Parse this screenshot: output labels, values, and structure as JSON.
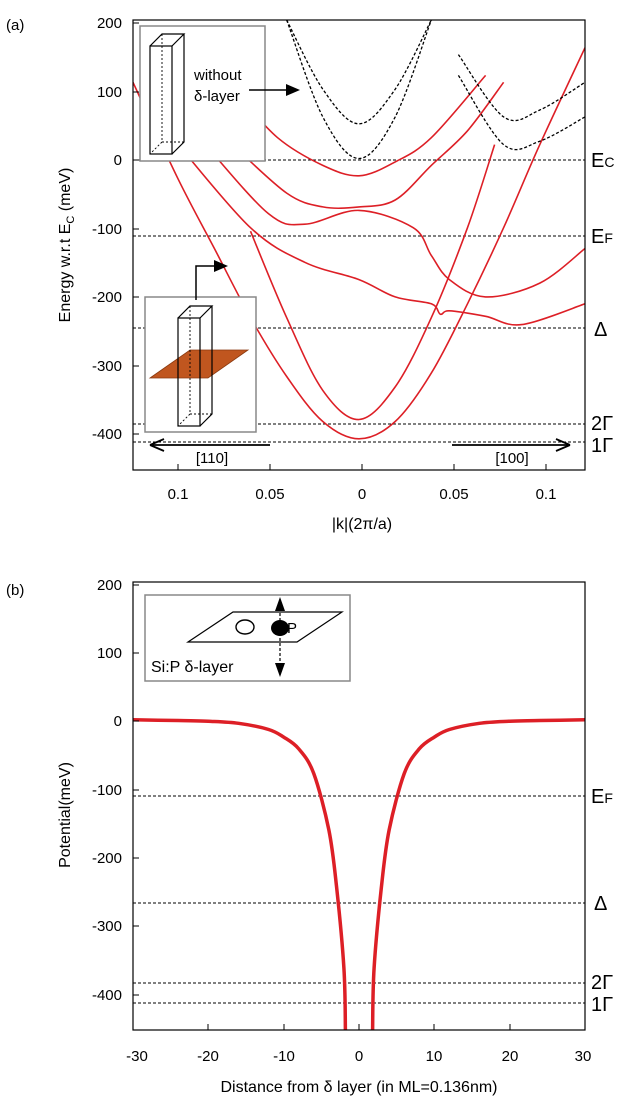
{
  "colors": {
    "band": "#dd1f26",
    "dashed": "#000000",
    "delta_layer": "#c0561f"
  },
  "panel_a": {
    "panel_label": "(a)",
    "ylabel": "Energy w.r.t E",
    "ylabel_sub": "C",
    "ylabel_unit": " (meV)",
    "xlabel": "|k|(2π/a)",
    "yticks": [
      "200",
      "100",
      "0",
      "-100",
      "-200",
      "-300",
      "-400"
    ],
    "xticks": [
      "0.1",
      "0.05",
      "0",
      "0.05",
      "0.1"
    ],
    "level_labels": {
      "ec": "E",
      "ec_sub": "C",
      "ef": "E",
      "ef_sub": "F",
      "delta": "Δ",
      "g2": "2Γ",
      "g1": "1Γ"
    },
    "dir_left": "[110]",
    "dir_right": "[100]",
    "inset_top": {
      "line1": "without",
      "line2": "δ-layer"
    }
  },
  "panel_b": {
    "panel_label": "(b)",
    "ylabel": "Potential(meV)",
    "xlabel": "Distance from δ layer (in ML=0.136nm)",
    "yticks": [
      "200",
      "100",
      "0",
      "-100",
      "-200",
      "-300",
      "-400"
    ],
    "xticks": [
      "-30",
      "-20",
      "-10",
      "0",
      "10",
      "20",
      "30"
    ],
    "level_labels": {
      "ef": "E",
      "ef_sub": "F",
      "delta": "Δ",
      "g2": "2Γ",
      "g1": "1Γ"
    },
    "inset": {
      "label": "Si:P δ-layer",
      "donor_label": "P"
    }
  },
  "chart_data": [
    {
      "type": "line",
      "panel": "a",
      "xlabel": "|k|(2π/a)",
      "ylabel": "Energy w.r.t E_C (meV)",
      "xlim": [
        -0.125,
        0.125
      ],
      "ylim": [
        -450,
        200
      ],
      "x_axis_note": "left half: [110] direction, right half: [100] direction; |k| increases away from 0",
      "reference_levels": [
        {
          "name": "E_C",
          "y": 0
        },
        {
          "name": "E_F",
          "y": -110
        },
        {
          "name": "Δ",
          "y": -240
        },
        {
          "name": "2Γ",
          "y": -378
        },
        {
          "name": "1Γ",
          "y": -405
        }
      ],
      "series": [
        {
          "style": "solid-red",
          "x": [
            -0.125,
            -0.1,
            -0.08,
            -0.06,
            -0.04,
            -0.02,
            0,
            0.02,
            0.04,
            0.06,
            0.08,
            0.1,
            0.125
          ],
          "y": [
            110,
            -30,
            -130,
            -230,
            -315,
            -380,
            -405,
            -380,
            -310,
            -210,
            -100,
            20,
            160
          ]
        },
        {
          "style": "solid-red",
          "x": [
            -0.06,
            -0.04,
            -0.02,
            0,
            0.02,
            0.04,
            0.06,
            0.075
          ],
          "y": [
            -105,
            -230,
            -335,
            -377,
            -330,
            -230,
            -100,
            20
          ]
        },
        {
          "style": "solid-red",
          "x": [
            -0.1,
            -0.06,
            -0.03,
            0,
            0.02,
            0.04,
            0.045,
            0.05,
            0.07,
            0.09,
            0.125
          ],
          "y": [
            20,
            -100,
            -150,
            -175,
            -200,
            -210,
            -225,
            -220,
            -228,
            -240,
            -210
          ]
        },
        {
          "style": "solid-red",
          "x": [
            -0.085,
            -0.05,
            -0.03,
            0,
            0.03,
            0.04,
            0.05,
            0.07,
            0.1,
            0.125
          ],
          "y": [
            20,
            -80,
            -95,
            -75,
            -100,
            -140,
            -175,
            -200,
            -180,
            -130
          ]
        },
        {
          "style": "solid-red",
          "x": [
            -0.07,
            -0.04,
            -0.02,
            0,
            0.02,
            0.04,
            0.06,
            0.08
          ],
          "y": [
            20,
            -50,
            -70,
            -70,
            -60,
            -10,
            40,
            110
          ]
        },
        {
          "style": "solid-red",
          "x": [
            -0.07,
            -0.045,
            -0.02,
            0,
            0.02,
            0.04,
            0.07
          ],
          "y": [
            100,
            30,
            -10,
            -25,
            -5,
            30,
            120
          ]
        },
        {
          "style": "dashed-black",
          "x": [
            -0.04,
            -0.02,
            0,
            0.02,
            0.04
          ],
          "y": [
            200,
            60,
            0,
            60,
            200
          ]
        },
        {
          "style": "dashed-black",
          "x": [
            -0.04,
            -0.02,
            0,
            0.02,
            0.04
          ],
          "y": [
            200,
            100,
            50,
            100,
            200
          ]
        },
        {
          "style": "dashed-black",
          "x": [
            0.055,
            0.08,
            0.1,
            0.125
          ],
          "y": [
            120,
            20,
            25,
            60
          ]
        },
        {
          "style": "dashed-black",
          "x": [
            0.055,
            0.08,
            0.1,
            0.125
          ],
          "y": [
            150,
            60,
            70,
            110
          ]
        }
      ]
    },
    {
      "type": "line",
      "panel": "b",
      "xlabel": "Distance from δ layer (in ML=0.136nm)",
      "ylabel": "Potential(meV)",
      "xlim": [
        -30,
        30
      ],
      "ylim": [
        -450,
        200
      ],
      "reference_levels": [
        {
          "name": "E_F",
          "y": -110
        },
        {
          "name": "Δ",
          "y": -262
        },
        {
          "name": "2Γ",
          "y": -378
        },
        {
          "name": "1Γ",
          "y": -405
        }
      ],
      "series": [
        {
          "style": "solid-red-thick",
          "x": [
            -30,
            -24,
            -20,
            -16,
            -12,
            -10,
            -8,
            -6,
            -4,
            -3,
            -2,
            -1.8
          ],
          "y": [
            0,
            -1,
            -2,
            -5,
            -14,
            -25,
            -42,
            -78,
            -160,
            -240,
            -360,
            -450
          ]
        },
        {
          "style": "solid-red-thick",
          "x": [
            1.8,
            2,
            3,
            4,
            6,
            8,
            10,
            12,
            16,
            20,
            24,
            30
          ],
          "y": [
            -450,
            -360,
            -240,
            -160,
            -78,
            -42,
            -25,
            -14,
            -5,
            -2,
            -1,
            0
          ]
        }
      ]
    }
  ]
}
